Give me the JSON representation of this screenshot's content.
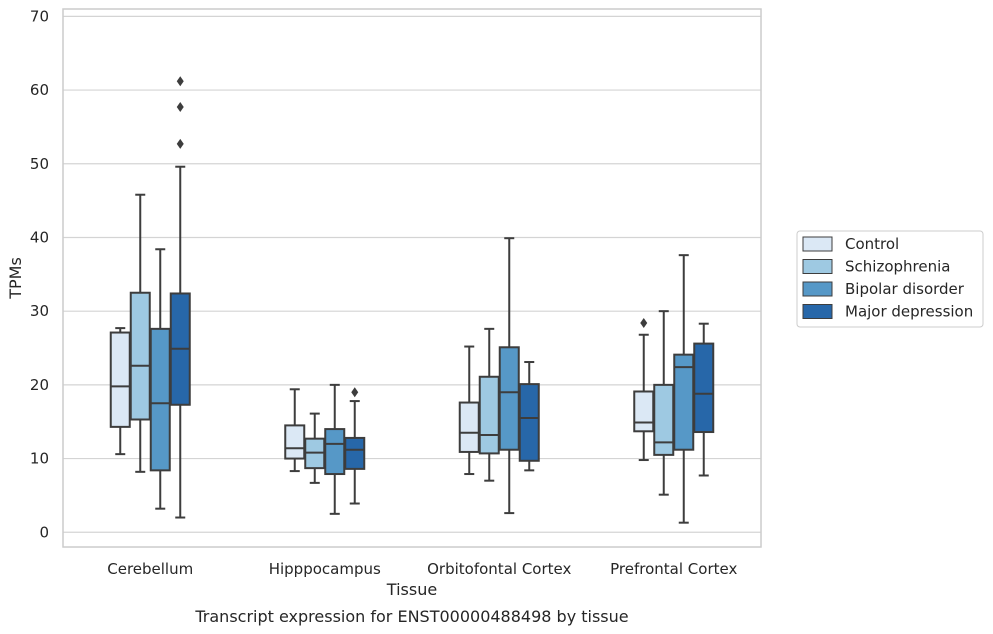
{
  "chart_data": {
    "type": "boxplot",
    "title": "",
    "caption": "Transcript expression for ENST00000488498 by tissue",
    "xlabel": "Tissue",
    "ylabel": "TPMs",
    "ylim": [
      -2,
      71
    ],
    "yticks": [
      0,
      10,
      20,
      30,
      40,
      50,
      60,
      70
    ],
    "grid": "horizontal",
    "legend_position": "right",
    "categories": [
      "Cerebellum",
      "Hipppocampus",
      "Orbitofontal Cortex",
      "Prefrontal Cortex"
    ],
    "series": [
      {
        "name": "Control",
        "color": "#dbe8f5",
        "boxes": [
          {
            "whislo": 10.6,
            "q1": 14.3,
            "med": 19.8,
            "q3": 27.1,
            "whishi": 27.7,
            "fliers": []
          },
          {
            "whislo": 8.3,
            "q1": 10.0,
            "med": 11.4,
            "q3": 14.5,
            "whishi": 19.4,
            "fliers": []
          },
          {
            "whislo": 7.9,
            "q1": 10.9,
            "med": 13.5,
            "q3": 17.6,
            "whishi": 25.2,
            "fliers": []
          },
          {
            "whislo": 9.8,
            "q1": 13.7,
            "med": 14.9,
            "q3": 19.1,
            "whishi": 26.8,
            "fliers": [
              28.4
            ]
          }
        ]
      },
      {
        "name": "Schizophrenia",
        "color": "#9ec9e2",
        "boxes": [
          {
            "whislo": 8.2,
            "q1": 15.3,
            "med": 22.6,
            "q3": 32.5,
            "whishi": 45.8,
            "fliers": []
          },
          {
            "whislo": 6.7,
            "q1": 8.7,
            "med": 10.8,
            "q3": 12.7,
            "whishi": 16.1,
            "fliers": []
          },
          {
            "whislo": 7.0,
            "q1": 10.7,
            "med": 13.2,
            "q3": 21.1,
            "whishi": 27.6,
            "fliers": []
          },
          {
            "whislo": 5.1,
            "q1": 10.5,
            "med": 12.2,
            "q3": 20.0,
            "whishi": 30.0,
            "fliers": []
          }
        ]
      },
      {
        "name": "Bipolar disorder",
        "color": "#5698c7",
        "boxes": [
          {
            "whislo": 3.2,
            "q1": 8.4,
            "med": 17.5,
            "q3": 27.6,
            "whishi": 38.4,
            "fliers": []
          },
          {
            "whislo": 2.5,
            "q1": 7.9,
            "med": 12.0,
            "q3": 14.0,
            "whishi": 20.0,
            "fliers": []
          },
          {
            "whislo": 2.6,
            "q1": 11.2,
            "med": 19.0,
            "q3": 25.1,
            "whishi": 39.9,
            "fliers": []
          },
          {
            "whislo": 1.3,
            "q1": 11.2,
            "med": 22.4,
            "q3": 24.1,
            "whishi": 37.6,
            "fliers": []
          }
        ]
      },
      {
        "name": "Major depression",
        "color": "#2767a9",
        "boxes": [
          {
            "whislo": 2.0,
            "q1": 17.3,
            "med": 24.9,
            "q3": 32.4,
            "whishi": 49.6,
            "fliers": [
              61.2,
              57.7,
              52.7
            ]
          },
          {
            "whislo": 3.9,
            "q1": 8.6,
            "med": 11.2,
            "q3": 12.8,
            "whishi": 17.8,
            "fliers": [
              19.0
            ]
          },
          {
            "whislo": 8.4,
            "q1": 9.7,
            "med": 15.5,
            "q3": 20.1,
            "whishi": 23.1,
            "fliers": []
          },
          {
            "whislo": 7.7,
            "q1": 13.6,
            "med": 18.8,
            "q3": 25.6,
            "whishi": 28.3,
            "fliers": []
          }
        ]
      }
    ]
  }
}
